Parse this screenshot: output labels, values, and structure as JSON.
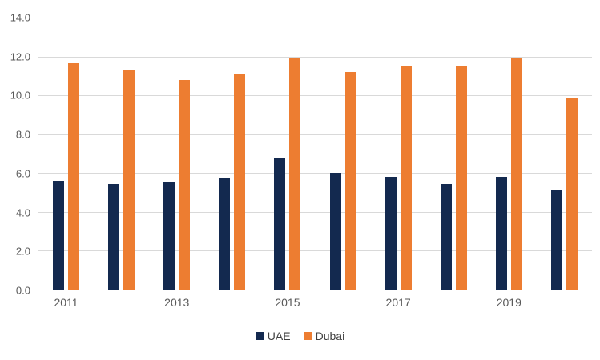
{
  "chart_data": {
    "type": "bar",
    "categories": [
      "2011",
      "2012",
      "2013",
      "2014",
      "2015",
      "2016",
      "2017",
      "2018",
      "2019",
      "2020"
    ],
    "series": [
      {
        "name": "UAE",
        "color": "#13294F",
        "values": [
          5.6,
          5.45,
          5.5,
          5.75,
          6.8,
          6.0,
          5.8,
          5.45,
          5.8,
          5.1
        ]
      },
      {
        "name": "Dubai",
        "color": "#ED7D31",
        "values": [
          11.65,
          11.3,
          10.8,
          11.1,
          11.9,
          11.2,
          11.5,
          11.55,
          11.9,
          9.85
        ]
      }
    ],
    "ylim": [
      0,
      14
    ],
    "ytick_step": 2,
    "ytick_labels": [
      "0.0",
      "2.0",
      "4.0",
      "6.0",
      "8.0",
      "10.0",
      "12.0",
      "14.0"
    ],
    "x_axis_labels": [
      "2011",
      "",
      "2013",
      "",
      "2015",
      "",
      "2017",
      "",
      "2019",
      ""
    ],
    "grid": true,
    "legend_position": "bottom"
  },
  "colors": {
    "gridline": "#D9D9D9",
    "axis_line": "#BFBFBF",
    "tick_text": "#595959",
    "legend_text": "#404040",
    "background": "#FFFFFF"
  }
}
